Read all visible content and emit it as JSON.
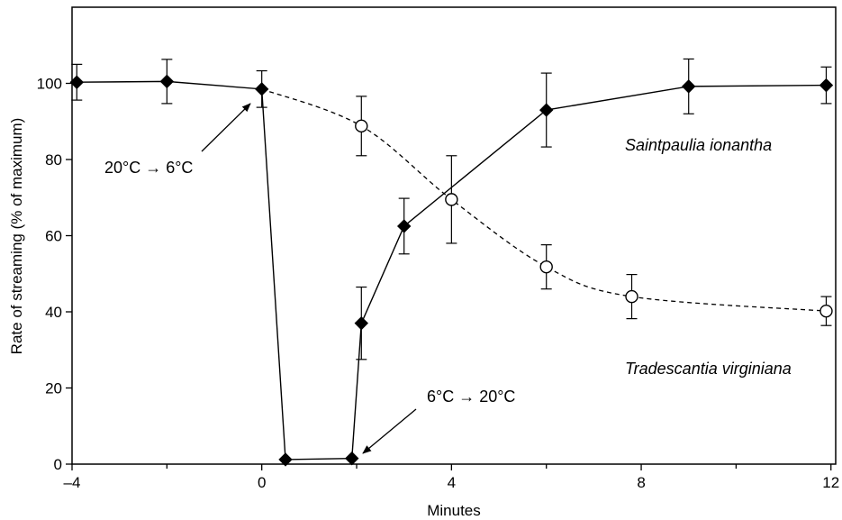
{
  "chart_data": {
    "type": "line",
    "xlabel": "Minutes",
    "ylabel": "Rate of streaming (% of maximum)",
    "xlim": [
      -4,
      12.1
    ],
    "ylim": [
      0,
      120
    ],
    "grid": false,
    "x_ticks": [
      -4,
      0,
      4,
      8,
      12
    ],
    "x_tick_labels": [
      "–4",
      "0",
      "4",
      "8",
      "12"
    ],
    "x_minor_ticks": [
      -2,
      2,
      6,
      10
    ],
    "y_ticks": [
      0,
      20,
      40,
      60,
      80,
      100
    ],
    "y_tick_labels": [
      "0",
      "20",
      "40",
      "60",
      "80",
      "100"
    ],
    "series": [
      {
        "name": "Saintpaulia ionantha",
        "marker": "filled-diamond",
        "line_style": "solid",
        "x": [
          -3.9,
          -2.0,
          0.0,
          0.5,
          1.9,
          2.1,
          3.0,
          6.0,
          9.0,
          11.9
        ],
        "y": [
          100.3,
          100.5,
          98.5,
          1.2,
          1.5,
          37.0,
          62.5,
          93.0,
          99.2,
          99.5
        ],
        "error": [
          4.7,
          5.8,
          4.8,
          null,
          null,
          9.5,
          7.3,
          9.7,
          7.2,
          4.8
        ]
      },
      {
        "name": "Tradescantia virginiana",
        "marker": "open-circle",
        "line_style": "dashed",
        "x": [
          0.0,
          2.1,
          4.0,
          6.0,
          7.8,
          11.9
        ],
        "y": [
          98.5,
          88.8,
          69.5,
          51.8,
          44.0,
          40.2
        ],
        "error": [
          null,
          7.8,
          11.5,
          5.8,
          5.8,
          3.8
        ]
      }
    ],
    "labels": {
      "saintpaulia": "Saintpaulia ionantha",
      "tradescantia": "Tradescantia virginiana"
    },
    "annotations": [
      {
        "text": "20°C → 6°C",
        "points_to": {
          "x": 0.0,
          "y": 98.5
        }
      },
      {
        "text": "6°C → 20°C",
        "points_to": {
          "x": 1.9,
          "y": 1.5
        }
      }
    ]
  }
}
